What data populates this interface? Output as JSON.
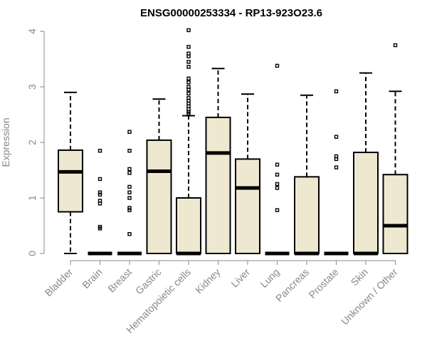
{
  "chart_data": {
    "type": "boxplot",
    "title": "ENSG00000253334 - RP13-923O23.6",
    "xlabel": "",
    "ylabel": "Expression",
    "ylim": [
      0,
      4.1
    ],
    "yticks": [
      0,
      1,
      2,
      3,
      4
    ],
    "categories": [
      "Bladder",
      "Brain",
      "Breast",
      "Gastric",
      "Hematopoietic cells",
      "Kidney",
      "Liver",
      "Lung",
      "Pancreas",
      "Prostate",
      "Skin",
      "Unknown / Other"
    ],
    "boxes": [
      {
        "name": "Bladder",
        "min": 0,
        "q1": 0.75,
        "median": 1.47,
        "q3": 1.86,
        "max": 2.9,
        "outliers": []
      },
      {
        "name": "Brain",
        "min": 0,
        "q1": 0,
        "median": 0,
        "q3": 0,
        "max": 0,
        "outliers": [
          1.85,
          1.34,
          1.1,
          1.06,
          0.95,
          0.9,
          0.48,
          0.45
        ]
      },
      {
        "name": "Breast",
        "min": 0,
        "q1": 0,
        "median": 0,
        "q3": 0,
        "max": 0,
        "outliers": [
          2.19,
          1.85,
          1.52,
          1.45,
          1.2,
          1.1,
          1.0,
          0.82,
          0.78,
          0.35
        ]
      },
      {
        "name": "Gastric",
        "min": 0,
        "q1": 0,
        "median": 1.48,
        "q3": 2.04,
        "max": 2.78,
        "outliers": []
      },
      {
        "name": "Hematopoietic cells",
        "min": 0,
        "q1": 0,
        "median": 0,
        "q3": 1.0,
        "max": 2.48,
        "outliers": [
          4.02,
          3.72,
          3.6,
          3.55,
          3.45,
          3.36,
          3.15,
          3.08,
          3.0,
          2.95,
          2.88,
          2.8,
          2.75,
          2.7,
          2.65,
          2.6,
          2.55,
          2.52
        ]
      },
      {
        "name": "Kidney",
        "min": 0,
        "q1": 0,
        "median": 1.81,
        "q3": 2.45,
        "max": 3.33,
        "outliers": []
      },
      {
        "name": "Liver",
        "min": 0,
        "q1": 0,
        "median": 1.18,
        "q3": 1.7,
        "max": 2.87,
        "outliers": []
      },
      {
        "name": "Lung",
        "min": 0,
        "q1": 0,
        "median": 0,
        "q3": 0,
        "max": 0,
        "outliers": [
          3.38,
          1.6,
          1.42,
          1.25,
          1.18,
          0.78
        ]
      },
      {
        "name": "Pancreas",
        "min": 0,
        "q1": 0,
        "median": 0,
        "q3": 1.38,
        "max": 2.85,
        "outliers": []
      },
      {
        "name": "Prostate",
        "min": 0,
        "q1": 0,
        "median": 0,
        "q3": 0,
        "max": 0,
        "outliers": [
          2.92,
          2.1,
          1.75,
          1.7,
          1.55
        ]
      },
      {
        "name": "Skin",
        "min": 0,
        "q1": 0,
        "median": 0,
        "q3": 1.82,
        "max": 3.25,
        "outliers": []
      },
      {
        "name": "Unknown / Other",
        "min": 0,
        "q1": 0,
        "median": 0.5,
        "q3": 1.42,
        "max": 2.92,
        "outliers": [
          3.75
        ]
      }
    ]
  }
}
